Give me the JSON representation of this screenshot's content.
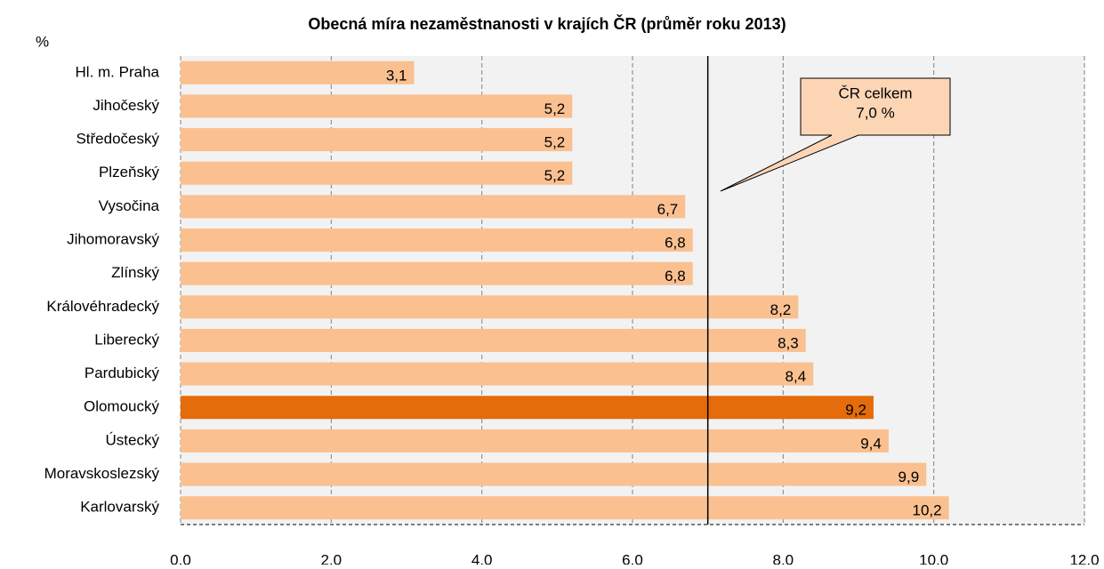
{
  "chart_data": {
    "type": "barh",
    "title": "Obecná míra nezaměstnanosti  v krajích ČR (průměr roku 2013)",
    "ylabel": "%",
    "categories": [
      "Hl. m. Praha",
      "Jihočeský",
      "Středočeský",
      "Plzeňský",
      "Vysočina",
      "Jihomoravský",
      "Zlínský",
      "Královéhradecký",
      "Liberecký",
      "Pardubický",
      "Olomoucký",
      "Ústecký",
      "Moravskoslezský",
      "Karlovarský"
    ],
    "values": [
      3.1,
      5.2,
      5.2,
      5.2,
      6.7,
      6.8,
      6.8,
      8.2,
      8.3,
      8.4,
      9.2,
      9.4,
      9.9,
      10.2
    ],
    "value_labels": [
      "3,1",
      "5,2",
      "5,2",
      "5,2",
      "6,7",
      "6,8",
      "6,8",
      "8,2",
      "8,3",
      "8,4",
      "9,2",
      "9,4",
      "9,9",
      "10,2"
    ],
    "colors": [
      "#fac090",
      "#fac090",
      "#fac090",
      "#fac090",
      "#fac090",
      "#fac090",
      "#fac090",
      "#fac090",
      "#fac090",
      "#fac090",
      "#e46c0a",
      "#fac090",
      "#fac090",
      "#fac090"
    ],
    "xlim": [
      0,
      12
    ],
    "xticks": [
      {
        "value": 0,
        "label": "0,0"
      },
      {
        "value": 2,
        "label": "2,0"
      },
      {
        "value": 4,
        "label": "4,0"
      },
      {
        "value": 6,
        "label": "6,0"
      },
      {
        "value": 8,
        "label": "8,0"
      },
      {
        "value": 10,
        "label": "10,0"
      },
      {
        "value": 12,
        "label": "12,0"
      }
    ],
    "grid": true,
    "reference": {
      "value": 7.0,
      "label": [
        "ČR celkem",
        "7,0 %"
      ]
    }
  }
}
